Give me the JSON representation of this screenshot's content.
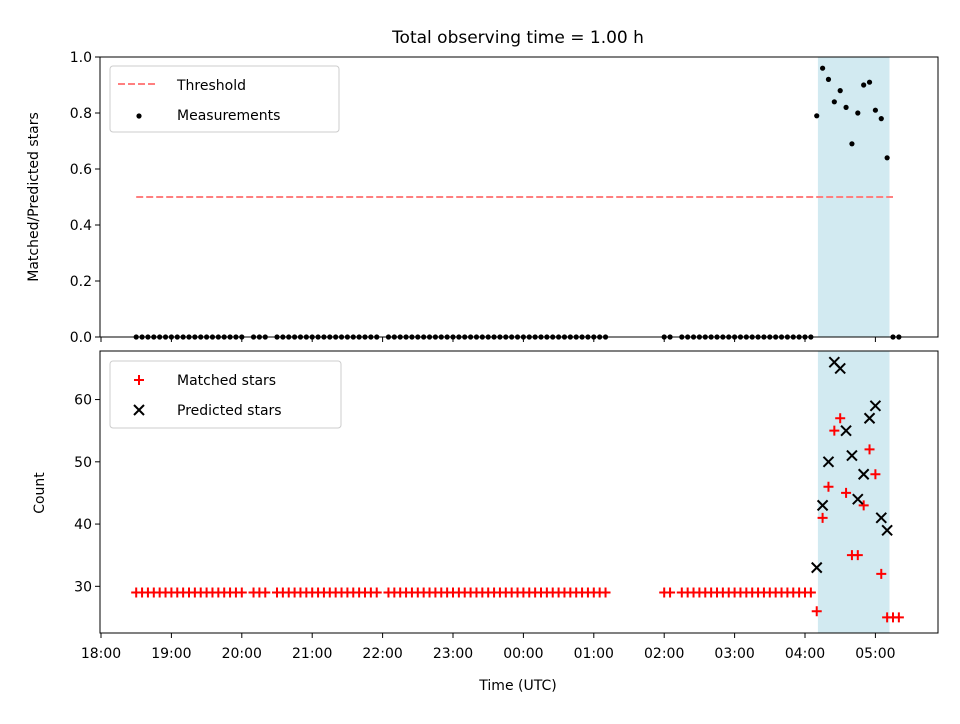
{
  "title": "Total observing time = 1.00 h",
  "chart_data": [
    {
      "type": "scatter",
      "ylabel": "Matched/Predicted stars",
      "ylim": [
        0,
        1
      ],
      "yticks": [
        "0.0",
        "0.2",
        "0.4",
        "0.6",
        "0.8",
        "1.0"
      ],
      "legend_position": "top-left",
      "threshold": {
        "name": "Threshold",
        "value": 0.5,
        "x_start": "18:30",
        "x_end": "05:15",
        "color": "#ff7f7f",
        "style": "dashed"
      },
      "shaded_span": {
        "x_start": "04:11",
        "x_end": "05:12",
        "color": "#add8e6"
      },
      "series": [
        {
          "name": "Measurements",
          "marker": "dot",
          "color": "#000000",
          "x": [
            "18:30",
            "18:35",
            "18:40",
            "18:45",
            "18:50",
            "18:55",
            "19:00",
            "19:05",
            "19:10",
            "19:15",
            "19:20",
            "19:25",
            "19:30",
            "19:35",
            "19:40",
            "19:45",
            "19:50",
            "19:55",
            "20:00",
            "20:10",
            "20:15",
            "20:20",
            "20:30",
            "20:35",
            "20:40",
            "20:45",
            "20:50",
            "20:55",
            "21:00",
            "21:05",
            "21:10",
            "21:15",
            "21:20",
            "21:25",
            "21:30",
            "21:35",
            "21:40",
            "21:45",
            "21:50",
            "21:55",
            "22:05",
            "22:10",
            "22:15",
            "22:20",
            "22:25",
            "22:30",
            "22:35",
            "22:40",
            "22:45",
            "22:50",
            "22:55",
            "23:00",
            "23:05",
            "23:10",
            "23:15",
            "23:20",
            "23:25",
            "23:30",
            "23:35",
            "23:40",
            "23:45",
            "23:50",
            "23:55",
            "00:00",
            "00:05",
            "00:10",
            "00:15",
            "00:20",
            "00:25",
            "00:30",
            "00:35",
            "00:40",
            "00:45",
            "00:50",
            "00:55",
            "01:00",
            "01:05",
            "01:10",
            "02:00",
            "02:05",
            "02:15",
            "02:20",
            "02:25",
            "02:30",
            "02:35",
            "02:40",
            "02:45",
            "02:50",
            "02:55",
            "03:00",
            "03:05",
            "03:10",
            "03:15",
            "03:20",
            "03:25",
            "03:30",
            "03:35",
            "03:40",
            "03:45",
            "03:50",
            "03:55",
            "04:00",
            "04:05",
            "04:10",
            "04:15",
            "04:20",
            "04:25",
            "04:30",
            "04:35",
            "04:40",
            "04:45",
            "04:50",
            "04:55",
            "05:00",
            "05:05",
            "05:10",
            "05:15",
            "05:20"
          ],
          "y": [
            0,
            0,
            0,
            0,
            0,
            0,
            0,
            0,
            0,
            0,
            0,
            0,
            0,
            0,
            0,
            0,
            0,
            0,
            0,
            0,
            0,
            0,
            0,
            0,
            0,
            0,
            0,
            0,
            0,
            0,
            0,
            0,
            0,
            0,
            0,
            0,
            0,
            0,
            0,
            0,
            0,
            0,
            0,
            0,
            0,
            0,
            0,
            0,
            0,
            0,
            0,
            0,
            0,
            0,
            0,
            0,
            0,
            0,
            0,
            0,
            0,
            0,
            0,
            0,
            0,
            0,
            0,
            0,
            0,
            0,
            0,
            0,
            0,
            0,
            0,
            0,
            0,
            0,
            0,
            0,
            0,
            0,
            0,
            0,
            0,
            0,
            0,
            0,
            0,
            0,
            0,
            0,
            0,
            0,
            0,
            0,
            0,
            0,
            0,
            0,
            0,
            0,
            0,
            0.79,
            0.96,
            0.92,
            0.84,
            0.88,
            0.82,
            0.69,
            0.8,
            0.9,
            0.91,
            0.81,
            0.78,
            0.64,
            0,
            0
          ]
        }
      ]
    },
    {
      "type": "scatter",
      "xlabel": "Time (UTC)",
      "ylabel": "Count",
      "ylim": [
        22.5,
        67.8
      ],
      "yticks": [
        "30",
        "40",
        "50",
        "60"
      ],
      "xticks": [
        "18:00",
        "19:00",
        "20:00",
        "21:00",
        "22:00",
        "23:00",
        "00:00",
        "01:00",
        "02:00",
        "03:00",
        "04:00",
        "05:00"
      ],
      "legend_position": "top-left",
      "shaded_span": {
        "x_start": "04:11",
        "x_end": "05:12",
        "color": "#add8e6"
      },
      "series": [
        {
          "name": "Matched stars",
          "marker": "plus",
          "color": "#ff0000",
          "x": [
            "18:30",
            "18:35",
            "18:40",
            "18:45",
            "18:50",
            "18:55",
            "19:00",
            "19:05",
            "19:10",
            "19:15",
            "19:20",
            "19:25",
            "19:30",
            "19:35",
            "19:40",
            "19:45",
            "19:50",
            "19:55",
            "20:00",
            "20:10",
            "20:15",
            "20:20",
            "20:30",
            "20:35",
            "20:40",
            "20:45",
            "20:50",
            "20:55",
            "21:00",
            "21:05",
            "21:10",
            "21:15",
            "21:20",
            "21:25",
            "21:30",
            "21:35",
            "21:40",
            "21:45",
            "21:50",
            "21:55",
            "22:05",
            "22:10",
            "22:15",
            "22:20",
            "22:25",
            "22:30",
            "22:35",
            "22:40",
            "22:45",
            "22:50",
            "22:55",
            "23:00",
            "23:05",
            "23:10",
            "23:15",
            "23:20",
            "23:25",
            "23:30",
            "23:35",
            "23:40",
            "23:45",
            "23:50",
            "23:55",
            "00:00",
            "00:05",
            "00:10",
            "00:15",
            "00:20",
            "00:25",
            "00:30",
            "00:35",
            "00:40",
            "00:45",
            "00:50",
            "00:55",
            "01:00",
            "01:05",
            "01:10",
            "02:00",
            "02:05",
            "02:15",
            "02:20",
            "02:25",
            "02:30",
            "02:35",
            "02:40",
            "02:45",
            "02:50",
            "02:55",
            "03:00",
            "03:05",
            "03:10",
            "03:15",
            "03:20",
            "03:25",
            "03:30",
            "03:35",
            "03:40",
            "03:45",
            "03:50",
            "03:55",
            "04:00",
            "04:05",
            "04:10",
            "04:15",
            "04:20",
            "04:25",
            "04:30",
            "04:35",
            "04:40",
            "04:45",
            "04:50",
            "04:55",
            "05:00",
            "05:05",
            "05:10",
            "05:15",
            "05:20"
          ],
          "y": [
            29,
            29,
            29,
            29,
            29,
            29,
            29,
            29,
            29,
            29,
            29,
            29,
            29,
            29,
            29,
            29,
            29,
            29,
            29,
            29,
            29,
            29,
            29,
            29,
            29,
            29,
            29,
            29,
            29,
            29,
            29,
            29,
            29,
            29,
            29,
            29,
            29,
            29,
            29,
            29,
            29,
            29,
            29,
            29,
            29,
            29,
            29,
            29,
            29,
            29,
            29,
            29,
            29,
            29,
            29,
            29,
            29,
            29,
            29,
            29,
            29,
            29,
            29,
            29,
            29,
            29,
            29,
            29,
            29,
            29,
            29,
            29,
            29,
            29,
            29,
            29,
            29,
            29,
            29,
            29,
            29,
            29,
            29,
            29,
            29,
            29,
            29,
            29,
            29,
            29,
            29,
            29,
            29,
            29,
            29,
            29,
            29,
            29,
            29,
            29,
            29,
            29,
            29,
            26,
            41,
            46,
            55,
            57,
            45,
            35,
            35,
            43,
            52,
            48,
            32,
            25,
            25,
            25
          ]
        },
        {
          "name": "Predicted stars",
          "marker": "x",
          "color": "#000000",
          "x": [
            "04:10",
            "04:15",
            "04:20",
            "04:25",
            "04:30",
            "04:35",
            "04:40",
            "04:45",
            "04:50",
            "04:55",
            "05:00",
            "05:05",
            "05:10"
          ],
          "y": [
            33,
            43,
            50,
            66,
            65,
            55,
            51,
            44,
            48,
            57,
            59,
            41,
            39
          ]
        }
      ]
    }
  ]
}
